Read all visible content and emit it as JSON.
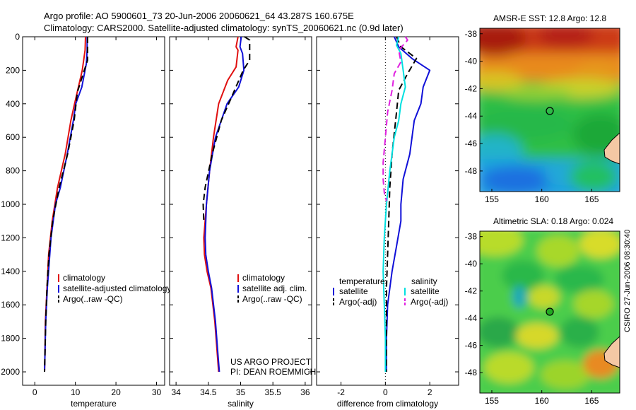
{
  "header": {
    "line1": "Argo profile: AO 5900601_73 20-Jun-2006 20060621_64 43.287S 160.675E",
    "line2": "Climatology: CARS2000. Satellite-adjusted climatology: synTS_20060621.nc (0.9d later)"
  },
  "side_label": "CSIRO 27-Jun-2006 08:30:40",
  "credit": {
    "line1": "US ARGO PROJECT",
    "line2": "PI: DEAN ROEMMICH"
  },
  "colors": {
    "climatology": "#e01010",
    "satellite": "#1010d8",
    "argo": "#000000",
    "satellite_diff": "#00e0e0",
    "argo_diff": "#e020e0"
  },
  "chart_data": [
    {
      "type": "line",
      "xlabel": "temperature",
      "xticks": [
        "0",
        "10",
        "20",
        "30"
      ],
      "xlim": [
        -3,
        32
      ],
      "ylim": [
        0,
        2080
      ],
      "y_reversed": true,
      "yticks": [
        "0",
        "200",
        "400",
        "600",
        "800",
        "1000",
        "1200",
        "1400",
        "1600",
        "1800",
        "2000"
      ],
      "legend": {
        "location": "lower-right",
        "entries": [
          "climatology",
          "satellite-adjusted climatology",
          "Argo(..raw -QC)"
        ]
      },
      "series": [
        {
          "name": "climatology",
          "color": "#e01010",
          "dash": "solid",
          "x": [
            12.5,
            12.4,
            11.7,
            9.8,
            8.9,
            7.5,
            5.6,
            4.3,
            3.4,
            3.0,
            2.6,
            2.5,
            2.4
          ],
          "y": [
            0,
            80,
            200,
            400,
            500,
            700,
            900,
            1100,
            1300,
            1500,
            1700,
            1900,
            2000
          ]
        },
        {
          "name": "satellite-adjusted climatology",
          "color": "#1010d8",
          "dash": "solid",
          "x": [
            12.9,
            12.9,
            12.7,
            11.6,
            10.1,
            9.5,
            8.0,
            6.3,
            5.1,
            4.0,
            3.1,
            2.7,
            2.5,
            2.4
          ],
          "y": [
            0,
            80,
            160,
            300,
            400,
            500,
            700,
            900,
            1000,
            1200,
            1500,
            1700,
            1900,
            2000
          ]
        },
        {
          "name": "Argo(..raw -QC)",
          "color": "#000000",
          "dash": "dash",
          "x": [
            13.0,
            13.0,
            12.2,
            10.5,
            9.7,
            8.1,
            6.0,
            4.4,
            3.5,
            3.0,
            2.7,
            2.5,
            2.4
          ],
          "y": [
            0,
            140,
            200,
            330,
            500,
            700,
            900,
            1100,
            1300,
            1500,
            1700,
            1900,
            2000
          ]
        }
      ]
    },
    {
      "type": "line",
      "xlabel": "salinity",
      "xticks": [
        "34",
        "34.5",
        "35",
        "35.5",
        "36"
      ],
      "xlim": [
        33.9,
        36.1
      ],
      "ylim": [
        0,
        2080
      ],
      "y_reversed": true,
      "legend": {
        "location": "lower-right",
        "entries": [
          "climatology",
          "satellite adj. clim.",
          "Argo(..raw -QC)"
        ]
      },
      "series": [
        {
          "name": "climatology",
          "color": "#e01010",
          "dash": "solid",
          "x": [
            34.96,
            34.93,
            34.96,
            34.93,
            34.8,
            34.66,
            34.58,
            34.52,
            34.47,
            34.45,
            34.43,
            34.44,
            34.48,
            34.54,
            34.6,
            34.64,
            34.66
          ],
          "y": [
            0,
            60,
            80,
            180,
            260,
            400,
            600,
            800,
            1000,
            1100,
            1200,
            1300,
            1400,
            1500,
            1700,
            1900,
            2000
          ]
        },
        {
          "name": "satellite adj. clim.",
          "color": "#1010d8",
          "dash": "solid",
          "x": [
            35.01,
            34.99,
            35.03,
            35.05,
            34.97,
            34.79,
            34.61,
            34.52,
            34.47,
            34.46,
            34.45,
            34.46,
            34.5,
            34.55,
            34.61,
            34.65,
            34.67
          ],
          "y": [
            0,
            60,
            100,
            200,
            300,
            400,
            600,
            800,
            1000,
            1100,
            1200,
            1300,
            1400,
            1500,
            1700,
            1900,
            2000
          ]
        },
        {
          "name": "Argo(..raw -QC)",
          "color": "#000000",
          "dash": "dash",
          "x": [
            35.06,
            35.14,
            35.14,
            35.04,
            34.86,
            34.7,
            34.56,
            34.45,
            34.42,
            34.43
          ],
          "y": [
            0,
            20,
            140,
            200,
            360,
            500,
            700,
            900,
            1000,
            1100
          ]
        }
      ]
    },
    {
      "type": "line",
      "xlabel": "difference from climatology",
      "xticks": [
        "-2",
        "0",
        "2"
      ],
      "xlim": [
        -3.1,
        3.3
      ],
      "ylim": [
        0,
        2080
      ],
      "y_reversed": true,
      "zero_line": "dotted",
      "legend": {
        "location": "lower-center",
        "columns": [
          {
            "title": "temperature",
            "entries": [
              "satellite",
              "Argo(-adj)"
            ]
          },
          {
            "title": "salinity",
            "entries": [
              "satellite",
              "Argo(-adj)"
            ]
          }
        ]
      },
      "series": [
        {
          "name": "temperature satellite",
          "color": "#1010d8",
          "dash": "solid",
          "x": [
            0.4,
            0.6,
            1.2,
            2.0,
            1.7,
            1.6,
            1.3,
            1.1,
            0.8,
            0.7,
            0.7,
            0.5,
            0.3,
            0.1,
            0.05,
            0.05
          ],
          "y": [
            0,
            60,
            130,
            200,
            300,
            400,
            500,
            700,
            850,
            1000,
            1100,
            1250,
            1400,
            1600,
            1800,
            2000
          ]
        },
        {
          "name": "temperature Argo(-adj)",
          "color": "#000000",
          "dash": "dash",
          "x": [
            0.5,
            0.7,
            1.4,
            1.0,
            0.6,
            0.5,
            0.3,
            0.2,
            0.15,
            0.1,
            0.05,
            0.05,
            0.05
          ],
          "y": [
            0,
            60,
            130,
            220,
            320,
            450,
            700,
            900,
            1100,
            1300,
            1500,
            1800,
            2000
          ]
        },
        {
          "name": "salinity satellite",
          "color": "#00e0e0",
          "dash": "solid",
          "x": [
            0.6,
            0.5,
            0.7,
            0.8,
            0.9,
            0.7,
            0.6,
            0.4,
            0.3,
            0.2,
            0.05,
            -0.05,
            -0.1,
            -0.05,
            0.0,
            0.0
          ],
          "y": [
            0,
            50,
            100,
            200,
            300,
            400,
            500,
            600,
            700,
            800,
            1000,
            1200,
            1400,
            1600,
            1800,
            2000
          ]
        },
        {
          "name": "salinity Argo(-adj)",
          "color": "#e020e0",
          "dash": "dash",
          "x": [
            0.9,
            1.0,
            0.6,
            0.7,
            0.4,
            0.3,
            0.1,
            0.0,
            -0.1,
            -0.1,
            -0.05,
            0.05
          ],
          "y": [
            0,
            20,
            80,
            150,
            220,
            320,
            450,
            600,
            750,
            850,
            930,
            980
          ]
        }
      ]
    },
    {
      "type": "heatmap",
      "title": "AMSR-E SST: 12.8 Argo: 12.8",
      "xticks": [
        "155",
        "160",
        "165"
      ],
      "yticks": [
        "-38",
        "-40",
        "-42",
        "-44",
        "-46",
        "-48"
      ],
      "xlim": [
        153.8,
        167.8
      ],
      "ylim": [
        -49.5,
        -37.6
      ],
      "marker": {
        "lon": 160.675,
        "lat": -43.287,
        "style": "open-circle"
      }
    },
    {
      "type": "heatmap",
      "title": "Altimetric SLA: 0.18 Argo: 0.024",
      "xticks": [
        "155",
        "160",
        "165"
      ],
      "yticks": [
        "-38",
        "-40",
        "-42",
        "-44",
        "-46",
        "-48"
      ],
      "xlim": [
        153.8,
        167.8
      ],
      "ylim": [
        -49.5,
        -37.6
      ],
      "marker": {
        "lon": 160.675,
        "lat": -43.287,
        "style": "filled-circle"
      }
    }
  ]
}
